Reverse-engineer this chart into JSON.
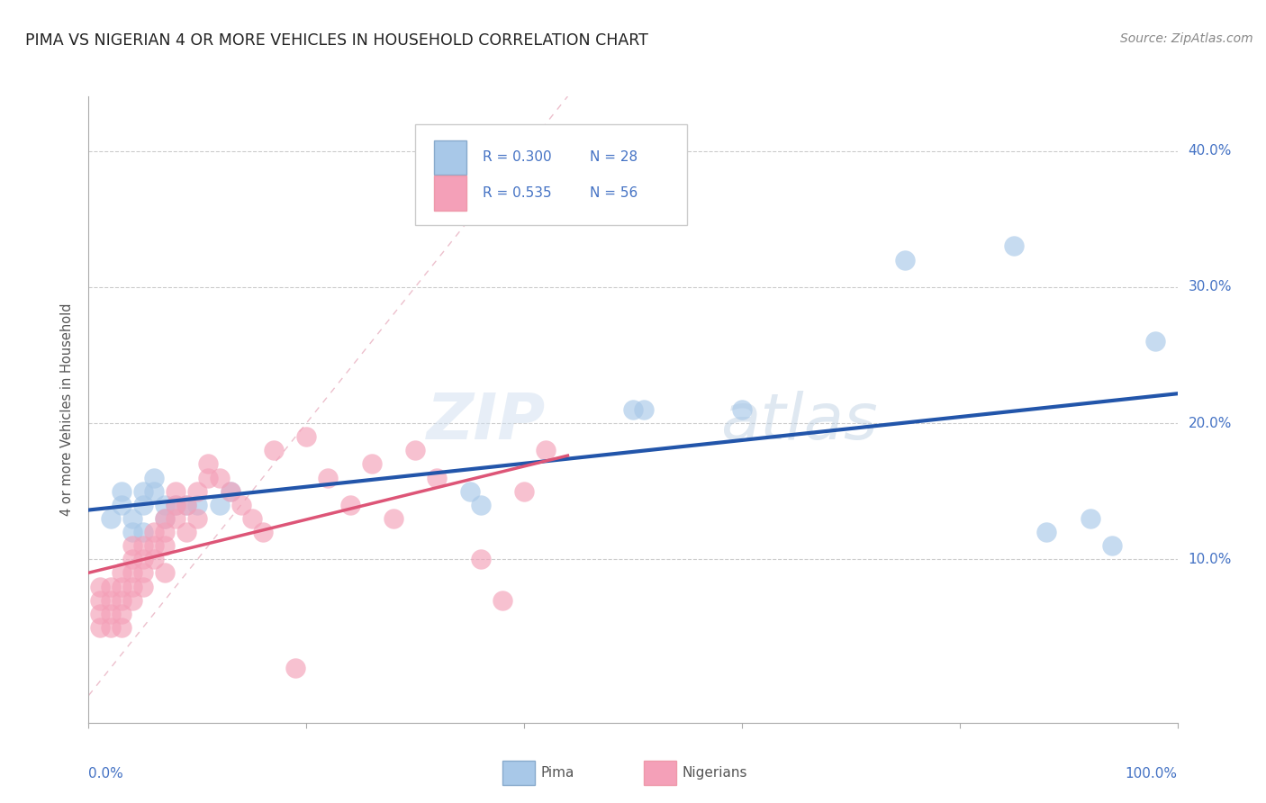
{
  "title": "PIMA VS NIGERIAN 4 OR MORE VEHICLES IN HOUSEHOLD CORRELATION CHART",
  "source": "Source: ZipAtlas.com",
  "ylabel": "4 or more Vehicles in Household",
  "color_pima": "#a8c8e8",
  "color_nigerian": "#f4a0b8",
  "color_pima_line": "#2255aa",
  "color_nigerian_line": "#dd5577",
  "color_diagonal": "#e8b0c0",
  "watermark_zip": "ZIP",
  "watermark_atlas": "atlas",
  "legend_R1": "R = 0.300",
  "legend_N1": "N = 28",
  "legend_R2": "R = 0.535",
  "legend_N2": "N = 56",
  "xlim": [
    0,
    100
  ],
  "ylim": [
    -2,
    44
  ],
  "pima_x": [
    2,
    3,
    3,
    4,
    4,
    5,
    5,
    5,
    6,
    6,
    7,
    7,
    8,
    9,
    10,
    12,
    13,
    35,
    36,
    50,
    51,
    60,
    75,
    85,
    88,
    92,
    94,
    98
  ],
  "pima_y": [
    13,
    14,
    15,
    12,
    13,
    12,
    14,
    15,
    15,
    16,
    13,
    14,
    14,
    14,
    14,
    14,
    15,
    15,
    14,
    21,
    21,
    21,
    32,
    33,
    12,
    13,
    11,
    26
  ],
  "nigerian_x": [
    1,
    1,
    1,
    1,
    2,
    2,
    2,
    2,
    3,
    3,
    3,
    3,
    3,
    4,
    4,
    4,
    4,
    4,
    5,
    5,
    5,
    5,
    6,
    6,
    6,
    7,
    7,
    7,
    7,
    8,
    8,
    8,
    9,
    9,
    10,
    10,
    11,
    11,
    12,
    13,
    14,
    15,
    16,
    17,
    19,
    20,
    22,
    24,
    26,
    28,
    30,
    32,
    36,
    38,
    40,
    42
  ],
  "nigerian_y": [
    7,
    6,
    5,
    8,
    6,
    5,
    7,
    8,
    5,
    7,
    6,
    8,
    9,
    10,
    8,
    9,
    7,
    11,
    8,
    10,
    9,
    11,
    10,
    12,
    11,
    9,
    12,
    11,
    13,
    13,
    15,
    14,
    12,
    14,
    13,
    15,
    16,
    17,
    16,
    15,
    14,
    13,
    12,
    18,
    2,
    19,
    16,
    14,
    17,
    13,
    18,
    16,
    10,
    7,
    15,
    18
  ]
}
